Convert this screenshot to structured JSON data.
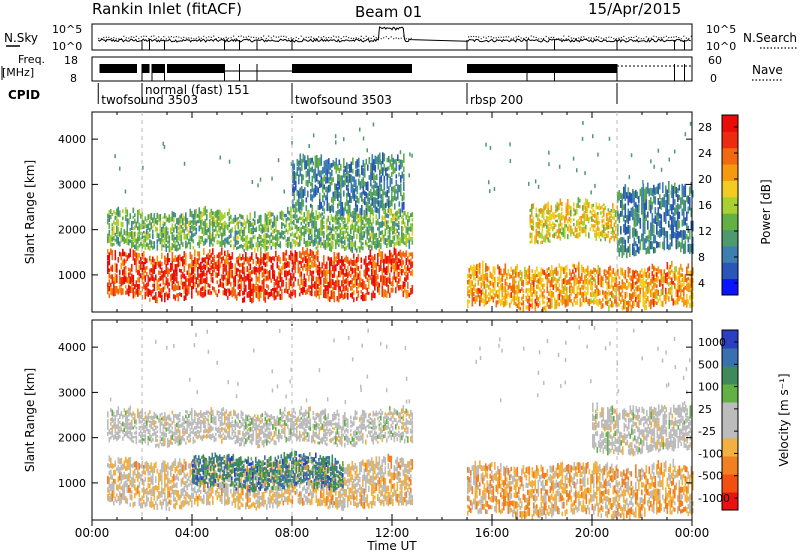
{
  "header": {
    "title": "Rankin Inlet (fitACF)",
    "beam": "Beam 01",
    "date": "15/Apr/2015"
  },
  "top_panels": {
    "nsky_label": "N.Sky",
    "nsky_ticks": [
      "10^5",
      "10^0"
    ],
    "nsearch_label": "N.Search",
    "nsearch_ticks": [
      "10^5",
      "10^0"
    ],
    "freq_label": "Freq.",
    "freq_unit": "[MHz]",
    "freq_ticks": [
      "18",
      "8"
    ],
    "nave_label": "Nave",
    "nave_ticks": [
      "60",
      "0"
    ],
    "cpid_label": "CPID",
    "cpid_modes": [
      {
        "label": "twofsound 3503",
        "start_h": 0.25,
        "end_h": 2.0
      },
      {
        "label": "normal (fast) 151",
        "start_h": 2.0,
        "end_h": 8.0
      },
      {
        "label": "twofsound 3503",
        "start_h": 8.0,
        "end_h": 15.0
      },
      {
        "label": "rbsp 200",
        "start_h": 15.0,
        "end_h": 21.0
      }
    ]
  },
  "x_axis": {
    "label": "Time UT",
    "ticks": [
      "00:00",
      "04:00",
      "08:00",
      "12:00",
      "16:00",
      "20:00",
      "00:00"
    ],
    "range_h": [
      0,
      24
    ]
  },
  "power_panel": {
    "ylabel": "Slant Range [km]",
    "yticks": [
      "1000",
      "2000",
      "3000",
      "4000"
    ],
    "colorbar_label": "Power [dB]",
    "colorbar_ticks": [
      "28",
      "24",
      "20",
      "16",
      "12",
      "8",
      "4"
    ]
  },
  "velocity_panel": {
    "ylabel": "Slant Range [km]",
    "yticks": [
      "1000",
      "2000",
      "3000",
      "4000"
    ],
    "colorbar_label": "Velocity [m s⁻¹]",
    "colorbar_ticks": [
      "1000",
      "500",
      "100",
      "25",
      "-25",
      "-100",
      "-500",
      "-1000"
    ]
  },
  "chart_data": [
    {
      "type": "heatmap",
      "title": "Power",
      "xlabel": "Time UT",
      "ylabel": "Slant Range [km]",
      "xlim_hours": [
        0,
        24
      ],
      "ylim_km": [
        180,
        4600
      ],
      "colorbar": {
        "label": "Power [dB]",
        "range": [
          0,
          32
        ],
        "colors": [
          "#0a14ff",
          "#2a56b8",
          "#3f7fb0",
          "#4f9a6c",
          "#63b045",
          "#a9cf32",
          "#f2cc22",
          "#f59a10",
          "#f26a10",
          "#ee2a10",
          "#e80d08"
        ]
      },
      "data_gaps_hours": [
        [
          12.8,
          15.0
        ]
      ],
      "echo_regions": [
        {
          "t_start_h": 0.6,
          "t_end_h": 12.8,
          "range_km": [
            500,
            1500
          ],
          "power_db": 27
        },
        {
          "t_start_h": 0.6,
          "t_end_h": 12.8,
          "range_km": [
            1600,
            2400
          ],
          "power_db": 13
        },
        {
          "t_start_h": 8.0,
          "t_end_h": 12.5,
          "range_km": [
            2400,
            3600
          ],
          "power_db": 9
        },
        {
          "t_start_h": 15.0,
          "t_end_h": 24.0,
          "range_km": [
            300,
            1200
          ],
          "power_db": 22
        },
        {
          "t_start_h": 17.5,
          "t_end_h": 21.0,
          "range_km": [
            1800,
            2600
          ],
          "power_db": 18
        },
        {
          "t_start_h": 21.0,
          "t_end_h": 24.0,
          "range_km": [
            1500,
            3000
          ],
          "power_db": 8
        }
      ]
    },
    {
      "type": "heatmap",
      "title": "Velocity",
      "xlabel": "Time UT",
      "ylabel": "Slant Range [km]",
      "xlim_hours": [
        0,
        24
      ],
      "ylim_km": [
        180,
        4600
      ],
      "colorbar": {
        "label": "Velocity [m s⁻¹]",
        "range": [
          -1000,
          1000
        ],
        "colors": [
          "#ee1010",
          "#f25010",
          "#f27f20",
          "#f2b040",
          "#bcbcbc",
          "#bcbcbc",
          "#63b045",
          "#3f8a5a",
          "#3a6fb0",
          "#2a40c0"
        ]
      },
      "data_gaps_hours": [
        [
          12.8,
          15.0
        ]
      ],
      "echo_regions": [
        {
          "t_start_h": 0.6,
          "t_end_h": 12.8,
          "range_km": [
            500,
            1500
          ],
          "velocity_ms": -200
        },
        {
          "t_start_h": 4.0,
          "t_end_h": 10.0,
          "range_km": [
            900,
            1600
          ],
          "velocity_ms": 600
        },
        {
          "t_start_h": 0.6,
          "t_end_h": 12.8,
          "range_km": [
            1900,
            2600
          ],
          "velocity_ms": 0
        },
        {
          "t_start_h": 15.0,
          "t_end_h": 24.0,
          "range_km": [
            300,
            1400
          ],
          "velocity_ms": -300
        },
        {
          "t_start_h": 20.0,
          "t_end_h": 24.0,
          "range_km": [
            1700,
            2700
          ],
          "velocity_ms": 0
        }
      ]
    }
  ]
}
